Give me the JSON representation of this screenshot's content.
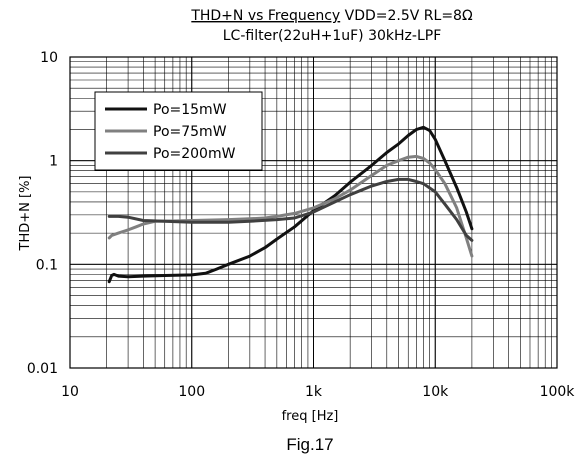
{
  "chart_data": {
    "type": "line",
    "title": "THD+N vs Frequency VDD=2.5V RL=8Ω",
    "title_part1": "THD+N vs Frequency",
    "title_part2": " VDD=2.5V RL=8Ω",
    "subtitle": "LC-filter(22uH+1uF) 30kHz-LPF",
    "xlabel": "freq [Hz]",
    "ylabel": "THD+N [%]",
    "caption": "Fig.17",
    "x_scale": "log",
    "y_scale": "log",
    "xlim": [
      10,
      100000
    ],
    "ylim": [
      0.01,
      10
    ],
    "x_ticks": [
      10,
      100,
      1000,
      10000,
      100000
    ],
    "x_tick_labels": [
      "10",
      "100",
      "1k",
      "10k",
      "100k"
    ],
    "y_ticks": [
      0.01,
      0.1,
      1,
      10
    ],
    "y_tick_labels": [
      "0.01",
      "0.1",
      "1",
      "10"
    ],
    "grid": true,
    "legend_position": "top-left",
    "series": [
      {
        "name": "Po=15mW",
        "color": "#111111",
        "points": [
          [
            21,
            0.068
          ],
          [
            22,
            0.078
          ],
          [
            23,
            0.08
          ],
          [
            25,
            0.077
          ],
          [
            30,
            0.076
          ],
          [
            40,
            0.077
          ],
          [
            60,
            0.078
          ],
          [
            100,
            0.079
          ],
          [
            130,
            0.082
          ],
          [
            160,
            0.09
          ],
          [
            200,
            0.1
          ],
          [
            300,
            0.12
          ],
          [
            400,
            0.145
          ],
          [
            500,
            0.175
          ],
          [
            700,
            0.23
          ],
          [
            1000,
            0.33
          ],
          [
            1500,
            0.46
          ],
          [
            2000,
            0.62
          ],
          [
            3000,
            0.9
          ],
          [
            4000,
            1.2
          ],
          [
            5000,
            1.45
          ],
          [
            6000,
            1.75
          ],
          [
            7000,
            2.0
          ],
          [
            8000,
            2.1
          ],
          [
            9000,
            1.95
          ],
          [
            10000,
            1.6
          ],
          [
            12000,
            1.0
          ],
          [
            15000,
            0.55
          ],
          [
            18000,
            0.32
          ],
          [
            20000,
            0.22
          ]
        ]
      },
      {
        "name": "Po=75mW",
        "color": "#808080",
        "points": [
          [
            21,
            0.18
          ],
          [
            22,
            0.19
          ],
          [
            25,
            0.2
          ],
          [
            30,
            0.215
          ],
          [
            35,
            0.23
          ],
          [
            40,
            0.245
          ],
          [
            50,
            0.26
          ],
          [
            70,
            0.262
          ],
          [
            100,
            0.265
          ],
          [
            200,
            0.27
          ],
          [
            300,
            0.275
          ],
          [
            400,
            0.28
          ],
          [
            500,
            0.29
          ],
          [
            700,
            0.31
          ],
          [
            1000,
            0.35
          ],
          [
            1500,
            0.43
          ],
          [
            2000,
            0.52
          ],
          [
            3000,
            0.72
          ],
          [
            4000,
            0.9
          ],
          [
            5000,
            1.0
          ],
          [
            6000,
            1.08
          ],
          [
            7000,
            1.1
          ],
          [
            8000,
            1.05
          ],
          [
            9000,
            0.95
          ],
          [
            10000,
            0.82
          ],
          [
            12000,
            0.6
          ],
          [
            15000,
            0.35
          ],
          [
            18000,
            0.18
          ],
          [
            20000,
            0.12
          ]
        ]
      },
      {
        "name": "Po=200mW",
        "color": "#404040",
        "points": [
          [
            21,
            0.29
          ],
          [
            25,
            0.29
          ],
          [
            30,
            0.285
          ],
          [
            40,
            0.265
          ],
          [
            60,
            0.26
          ],
          [
            100,
            0.255
          ],
          [
            200,
            0.255
          ],
          [
            300,
            0.26
          ],
          [
            500,
            0.27
          ],
          [
            700,
            0.28
          ],
          [
            1000,
            0.32
          ],
          [
            1500,
            0.4
          ],
          [
            2000,
            0.47
          ],
          [
            3000,
            0.57
          ],
          [
            4000,
            0.63
          ],
          [
            5000,
            0.66
          ],
          [
            6000,
            0.66
          ],
          [
            7000,
            0.63
          ],
          [
            8000,
            0.6
          ],
          [
            10000,
            0.5
          ],
          [
            12000,
            0.38
          ],
          [
            15000,
            0.27
          ],
          [
            18000,
            0.19
          ],
          [
            20000,
            0.17
          ]
        ]
      }
    ]
  }
}
